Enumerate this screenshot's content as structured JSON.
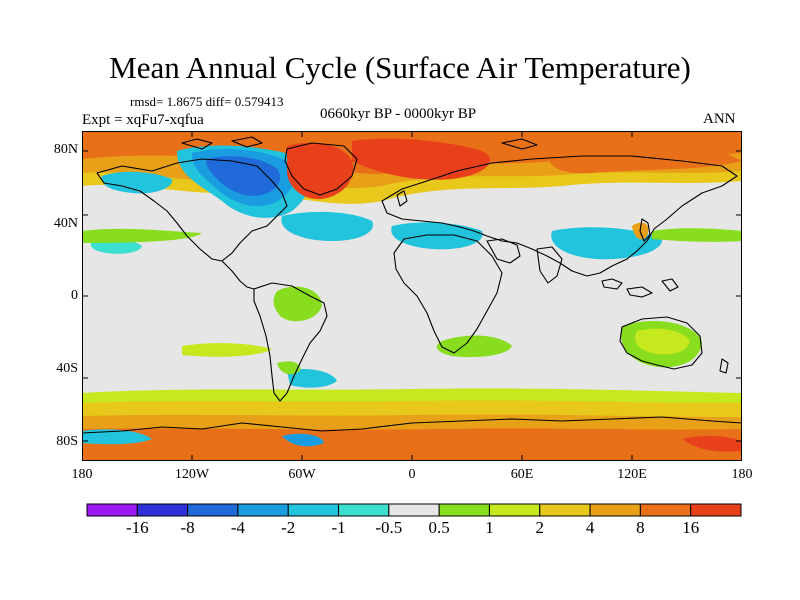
{
  "title": "Mean Annual Cycle (Surface Air Temperature)",
  "stats": "rmsd= 1.8675 diff= 0.579413",
  "experiment": "Expt = xqFu7-xqfua",
  "period": "0660kyr BP - 0000kyr BP",
  "season": "ANN",
  "lat_labels": [
    "80N",
    "40N",
    "0",
    "40S",
    "80S"
  ],
  "lon_labels": [
    "180",
    "120W",
    "60W",
    "0",
    "60E",
    "120E",
    "180"
  ],
  "colorbar": {
    "colors": [
      "#9a1af0",
      "#3030d8",
      "#1f6ad8",
      "#1a9de0",
      "#22c3dc",
      "#3ddfd0",
      "#e6e6e6",
      "#88dd1e",
      "#c6e81e",
      "#e8c81a",
      "#e8a018",
      "#e87018",
      "#e8401a"
    ],
    "labels": [
      "-16",
      "-8",
      "-4",
      "-2",
      "-1",
      "-0.5",
      "0.5",
      "1",
      "2",
      "4",
      "8",
      "16"
    ]
  },
  "field_colors": {
    "neutral": "#e6e6e6",
    "light_green": "#88dd1e",
    "yellow_green": "#c6e81e",
    "yellow": "#e8c81a",
    "orange": "#e8a018",
    "dark_orange": "#e87018",
    "red_orange": "#e8401a",
    "cyan": "#3ddfd0",
    "light_blue": "#22c3dc",
    "mid_blue": "#1a9de0",
    "blue": "#1f6ad8"
  }
}
